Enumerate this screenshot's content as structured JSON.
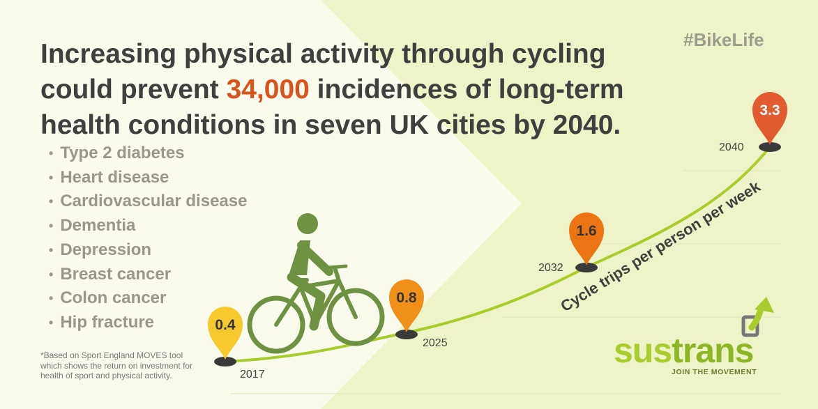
{
  "headline": {
    "before": "Increasing physical activity through cycling could prevent ",
    "highlight": "34,000",
    "after": " incidences of long-term health conditions in seven UK cities by 2040."
  },
  "hashtag": "#BikeLife",
  "conditions": [
    "Type 2 diabetes",
    "Heart disease",
    "Cardiovascular disease",
    "Dementia",
    "Depression",
    "Breast cancer",
    "Colon cancer",
    "Hip fracture"
  ],
  "footnote": "*Based on Sport England MOVES tool which shows the return on investment for health of sport and physical activity.",
  "curve_label": "Cycle trips per person per week",
  "markers": [
    {
      "year": "2017",
      "value": "0.4",
      "color": "#f8c92f"
    },
    {
      "year": "2025",
      "value": "0.8",
      "color": "#f09018"
    },
    {
      "year": "2032",
      "value": "1.6",
      "color": "#ec7412"
    },
    {
      "year": "2040",
      "value": "3.3",
      "color": "#e15a30"
    }
  ],
  "colors": {
    "accent": "#d9541c",
    "curve": "#a8cc2e",
    "figure": "#6f9142",
    "text": "#3f3f3f",
    "list": "#9b958c"
  },
  "logo": {
    "sus": "sus",
    "trans": "trans",
    "tagline": "JOIN THE MOVEMENT"
  },
  "icons": {
    "cyclist": "cyclist-icon",
    "logo_arrow": "arrow-up-icon"
  }
}
